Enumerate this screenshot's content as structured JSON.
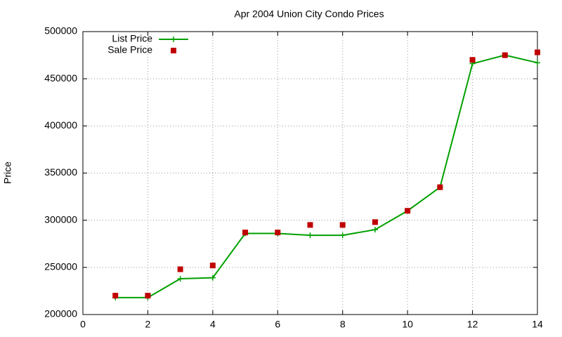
{
  "chart_data": {
    "type": "line",
    "title": "Apr 2004 Union City Condo Prices",
    "y_label": "Price",
    "x": [
      1,
      2,
      3,
      4,
      5,
      6,
      7,
      8,
      9,
      10,
      11,
      12,
      13,
      14
    ],
    "series": [
      {
        "name": "List Price",
        "color": "#00a000",
        "style": "linespoints",
        "values": [
          218000,
          218000,
          238000,
          239000,
          286000,
          286000,
          284000,
          284000,
          290000,
          310000,
          335000,
          466000,
          475000,
          467000
        ]
      },
      {
        "name": "Sale Price",
        "color": "#c00000",
        "style": "points",
        "values": [
          220000,
          220000,
          248000,
          252000,
          287000,
          287000,
          295000,
          295000,
          298000,
          310000,
          335000,
          470000,
          475000,
          478000
        ]
      }
    ],
    "xlim": [
      0,
      14
    ],
    "xticks": [
      0,
      2,
      4,
      6,
      8,
      10,
      12,
      14
    ],
    "ylim": [
      200000,
      500000
    ],
    "yticks": [
      200000,
      250000,
      300000,
      350000,
      400000,
      450000,
      500000
    ],
    "grid": true,
    "legend": "top-left"
  }
}
